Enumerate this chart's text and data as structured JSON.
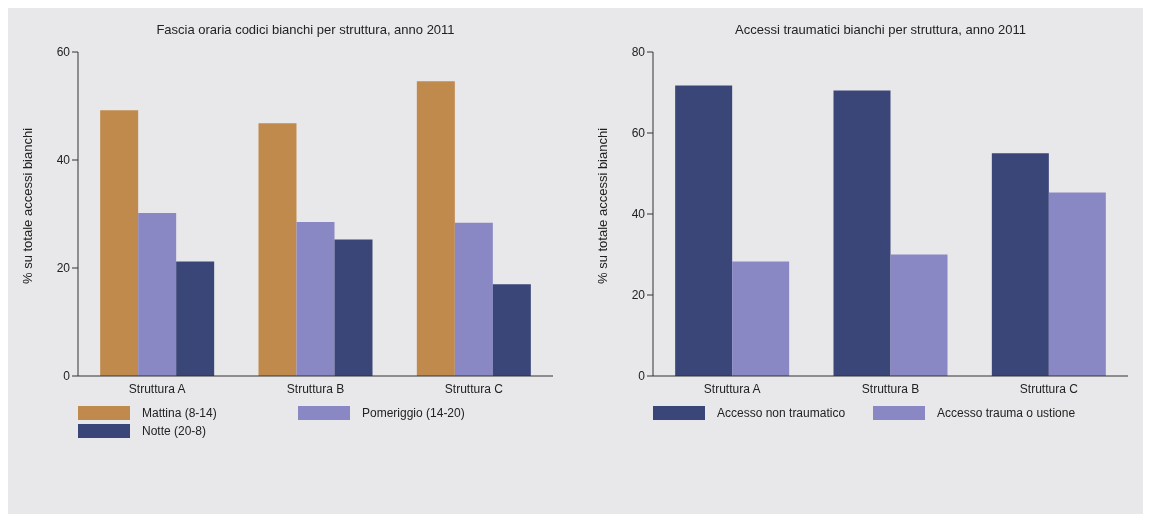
{
  "chart_data": [
    {
      "type": "bar",
      "title": "Fascia oraria codici bianchi per struttura, anno 2011",
      "ylabel": "% su totale accessi bianchi",
      "categories": [
        "Struttura A",
        "Struttura B",
        "Struttura C"
      ],
      "ylim": [
        0,
        60
      ],
      "yticks": [
        0,
        20,
        40,
        60
      ],
      "grid": false,
      "legend": "bottom",
      "series": [
        {
          "name": "Mattina (8-14)",
          "color": "#c08a4c",
          "values": [
            49.2,
            46.8,
            54.6
          ]
        },
        {
          "name": "Pomeriggio (14-20)",
          "color": "#8a88c4",
          "values": [
            30.2,
            28.5,
            28.4
          ]
        },
        {
          "name": "Notte (20-8)",
          "color": "#3a4578",
          "values": [
            21.2,
            25.3,
            17.0
          ]
        }
      ]
    },
    {
      "type": "bar",
      "title": "Accessi traumatici bianchi per struttura, anno 2011",
      "ylabel": "% su totale accessi bianchi",
      "categories": [
        "Struttura A",
        "Struttura B",
        "Struttura C"
      ],
      "ylim": [
        0,
        80
      ],
      "yticks": [
        0,
        20,
        40,
        60,
        80
      ],
      "grid": false,
      "legend": "bottom",
      "series": [
        {
          "name": "Accesso non traumatico",
          "color": "#3a4578",
          "values": [
            71.7,
            70.5,
            55.0
          ]
        },
        {
          "name": "Accesso trauma o ustione",
          "color": "#8a88c4",
          "values": [
            28.3,
            30.0,
            45.3
          ]
        }
      ]
    }
  ]
}
